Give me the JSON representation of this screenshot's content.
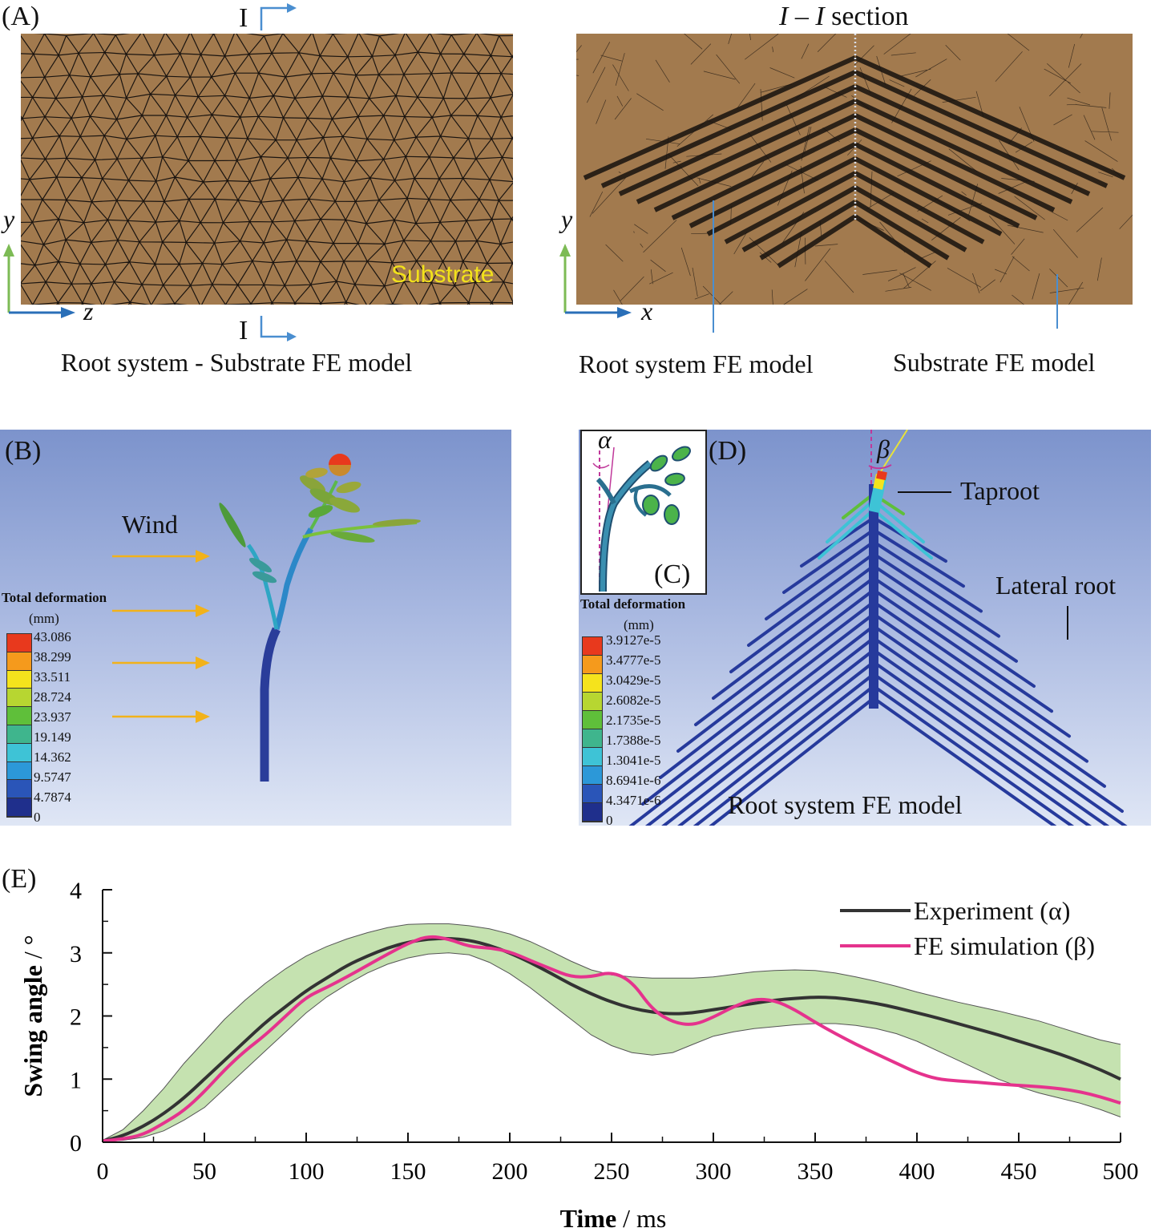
{
  "panel_a": {
    "label": "(A)",
    "section_marker": "I",
    "substrate_label": "Substrate",
    "axis_y": "y",
    "axis_z": "z",
    "caption": "Root system - Substrate FE model"
  },
  "panel_a2": {
    "title_i1": "I",
    "title_dash": " – ",
    "title_i2": "I",
    "title_rest": " section",
    "axis_y": "y",
    "axis_x": "x",
    "caption_left": "Root system FE model",
    "caption_right": "Substrate FE model"
  },
  "panel_b": {
    "label": "(B)",
    "wind_label": "Wind",
    "legend_title": "Total deformation",
    "legend_unit": "(mm)",
    "legend_values": [
      "43.086",
      "38.299",
      "33.511",
      "28.724",
      "23.937",
      "19.149",
      "14.362",
      "9.5747",
      "4.7874",
      "0"
    ]
  },
  "panel_c": {
    "label": "(C)",
    "alpha": "α"
  },
  "panel_d": {
    "label": "(D)",
    "beta": "β",
    "taproot_label": "Taproot",
    "lateral_label": "Lateral root",
    "caption": "Root system FE model",
    "legend_title": "Total deformation",
    "legend_unit": "(mm)",
    "legend_values": [
      "3.9127e-5",
      "3.4777e-5",
      "3.0429e-5",
      "2.6082e-5",
      "2.1735e-5",
      "1.7388e-5",
      "1.3041e-5",
      "8.6941e-6",
      "4.3471e-6",
      "0"
    ]
  },
  "legend_colors": [
    "#e8391d",
    "#f59a1c",
    "#f5e31c",
    "#b7d631",
    "#5fbf3a",
    "#3fb58d",
    "#3ec3d6",
    "#2c98d8",
    "#2a55b8",
    "#1f2f8c"
  ],
  "panel_e": {
    "label": "(E)",
    "legend_experiment": "Experiment (α)",
    "legend_simulation": "FE simulation (β)"
  },
  "chart_data": {
    "type": "line",
    "xlabel_bold": "Time",
    "xlabel_rest": " / ms",
    "ylabel_bold": "Swing angle",
    "ylabel_rest": " / °",
    "xlim": [
      0,
      500
    ],
    "ylim": [
      0,
      4
    ],
    "xticks": [
      0,
      50,
      100,
      150,
      200,
      250,
      300,
      350,
      400,
      450,
      500
    ],
    "yticks": [
      0,
      1,
      2,
      3,
      4
    ],
    "colors": {
      "experiment": "#333333",
      "simulation": "#e5338d",
      "band": "#c5e2b0",
      "band_edge": "#555555"
    },
    "series": [
      {
        "name": "Experiment (α)",
        "x": [
          0,
          10,
          20,
          30,
          40,
          50,
          60,
          70,
          80,
          90,
          100,
          110,
          120,
          130,
          140,
          150,
          160,
          170,
          180,
          190,
          200,
          210,
          220,
          230,
          240,
          250,
          260,
          270,
          280,
          290,
          300,
          310,
          320,
          330,
          340,
          350,
          360,
          370,
          380,
          390,
          400,
          410,
          420,
          430,
          440,
          450,
          460,
          470,
          480,
          490,
          500
        ],
        "y": [
          0.02,
          0.1,
          0.25,
          0.45,
          0.7,
          1.0,
          1.3,
          1.6,
          1.9,
          2.15,
          2.4,
          2.6,
          2.8,
          2.95,
          3.08,
          3.17,
          3.22,
          3.23,
          3.2,
          3.12,
          3.0,
          2.85,
          2.68,
          2.5,
          2.35,
          2.22,
          2.12,
          2.06,
          2.03,
          2.05,
          2.1,
          2.15,
          2.2,
          2.25,
          2.28,
          2.3,
          2.29,
          2.25,
          2.2,
          2.13,
          2.05,
          1.97,
          1.88,
          1.79,
          1.7,
          1.6,
          1.5,
          1.4,
          1.28,
          1.15,
          1.0
        ]
      },
      {
        "name": "FE simulation (β)",
        "x": [
          0,
          10,
          20,
          30,
          40,
          50,
          60,
          70,
          80,
          90,
          100,
          110,
          120,
          130,
          140,
          150,
          160,
          170,
          180,
          190,
          200,
          210,
          220,
          230,
          240,
          250,
          260,
          270,
          280,
          290,
          300,
          310,
          320,
          330,
          340,
          350,
          360,
          370,
          380,
          390,
          400,
          410,
          420,
          430,
          440,
          450,
          460,
          470,
          480,
          490,
          500
        ],
        "y": [
          0.02,
          0.05,
          0.12,
          0.3,
          0.5,
          0.8,
          1.15,
          1.45,
          1.7,
          2.0,
          2.3,
          2.45,
          2.62,
          2.8,
          2.98,
          3.15,
          3.27,
          3.22,
          3.1,
          3.08,
          3.02,
          2.88,
          2.75,
          2.62,
          2.62,
          2.7,
          2.55,
          2.1,
          1.9,
          1.85,
          1.98,
          2.15,
          2.27,
          2.25,
          2.1,
          1.9,
          1.72,
          1.55,
          1.4,
          1.25,
          1.1,
          1.0,
          0.97,
          0.95,
          0.92,
          0.9,
          0.88,
          0.85,
          0.8,
          0.72,
          0.62
        ]
      }
    ],
    "band": {
      "x": [
        0,
        10,
        20,
        30,
        40,
        50,
        60,
        70,
        80,
        90,
        100,
        110,
        120,
        130,
        140,
        150,
        160,
        170,
        180,
        190,
        200,
        210,
        220,
        230,
        240,
        250,
        260,
        270,
        280,
        290,
        300,
        310,
        320,
        330,
        340,
        350,
        360,
        370,
        380,
        390,
        400,
        410,
        420,
        430,
        440,
        450,
        460,
        470,
        480,
        490,
        500
      ],
      "upper": [
        0.03,
        0.2,
        0.5,
        0.85,
        1.25,
        1.6,
        1.95,
        2.25,
        2.52,
        2.75,
        2.95,
        3.1,
        3.22,
        3.32,
        3.4,
        3.45,
        3.46,
        3.46,
        3.43,
        3.38,
        3.3,
        3.18,
        3.03,
        2.87,
        2.73,
        2.65,
        2.62,
        2.6,
        2.6,
        2.6,
        2.62,
        2.66,
        2.7,
        2.72,
        2.73,
        2.72,
        2.68,
        2.62,
        2.55,
        2.47,
        2.38,
        2.3,
        2.22,
        2.15,
        2.08,
        2.0,
        1.92,
        1.82,
        1.72,
        1.62,
        1.55
      ],
      "lower": [
        0.01,
        0.03,
        0.08,
        0.18,
        0.35,
        0.55,
        0.85,
        1.15,
        1.45,
        1.75,
        2.05,
        2.3,
        2.5,
        2.68,
        2.82,
        2.92,
        2.98,
        3.0,
        2.97,
        2.85,
        2.67,
        2.45,
        2.2,
        1.95,
        1.7,
        1.53,
        1.42,
        1.38,
        1.42,
        1.55,
        1.68,
        1.75,
        1.8,
        1.83,
        1.86,
        1.88,
        1.88,
        1.85,
        1.8,
        1.72,
        1.6,
        1.45,
        1.3,
        1.15,
        1.0,
        0.88,
        0.78,
        0.7,
        0.62,
        0.52,
        0.4
      ]
    }
  }
}
